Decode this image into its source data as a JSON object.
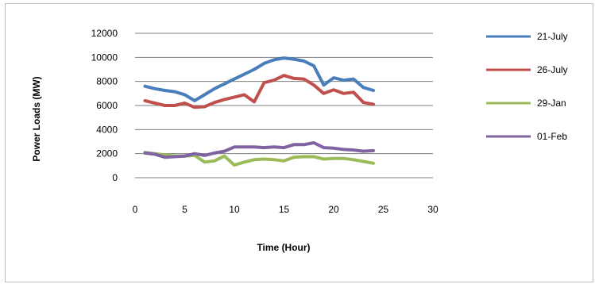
{
  "chart_data": {
    "type": "line",
    "title": "",
    "xlabel": "Time (Hour)",
    "ylabel": "Power Loads (MW)",
    "xlim": [
      0,
      30
    ],
    "ylim": [
      0,
      12000
    ],
    "xticks": [
      0,
      5,
      10,
      15,
      20,
      25,
      30
    ],
    "yticks": [
      0,
      2000,
      4000,
      6000,
      8000,
      10000,
      12000
    ],
    "grid": "horizontal",
    "legend_position": "right",
    "x": [
      1,
      2,
      3,
      4,
      5,
      6,
      7,
      8,
      9,
      10,
      11,
      12,
      13,
      14,
      15,
      16,
      17,
      18,
      19,
      20,
      21,
      22,
      23,
      24
    ],
    "series": [
      {
        "name": "21-July",
        "color": "#4a7ebb",
        "values": [
          7600,
          7400,
          7250,
          7150,
          6900,
          6400,
          6900,
          7400,
          7800,
          8200,
          8600,
          9000,
          9500,
          9800,
          9950,
          9850,
          9700,
          9300,
          7700,
          8300,
          8100,
          8200,
          7500,
          7250
        ]
      },
      {
        "name": "26-July",
        "color": "#c0504d",
        "values": [
          6400,
          6200,
          6000,
          6000,
          6200,
          5850,
          5900,
          6250,
          6500,
          6700,
          6900,
          6300,
          7900,
          8100,
          8500,
          8250,
          8200,
          7700,
          7000,
          7300,
          7000,
          7100,
          6250,
          6100
        ]
      },
      {
        "name": "29-Jan",
        "color": "#9bbb59",
        "values": [
          2100,
          2000,
          1900,
          1800,
          1800,
          1850,
          1300,
          1400,
          1800,
          1050,
          1300,
          1500,
          1550,
          1500,
          1400,
          1700,
          1750,
          1750,
          1550,
          1600,
          1600,
          1500,
          1350,
          1200
        ]
      },
      {
        "name": "01-Feb",
        "color": "#8064a2",
        "values": [
          2050,
          1950,
          1700,
          1750,
          1800,
          2000,
          1850,
          2050,
          2200,
          2550,
          2550,
          2550,
          2500,
          2550,
          2500,
          2750,
          2750,
          2900,
          2500,
          2450,
          2350,
          2300,
          2200,
          2250
        ]
      }
    ]
  }
}
